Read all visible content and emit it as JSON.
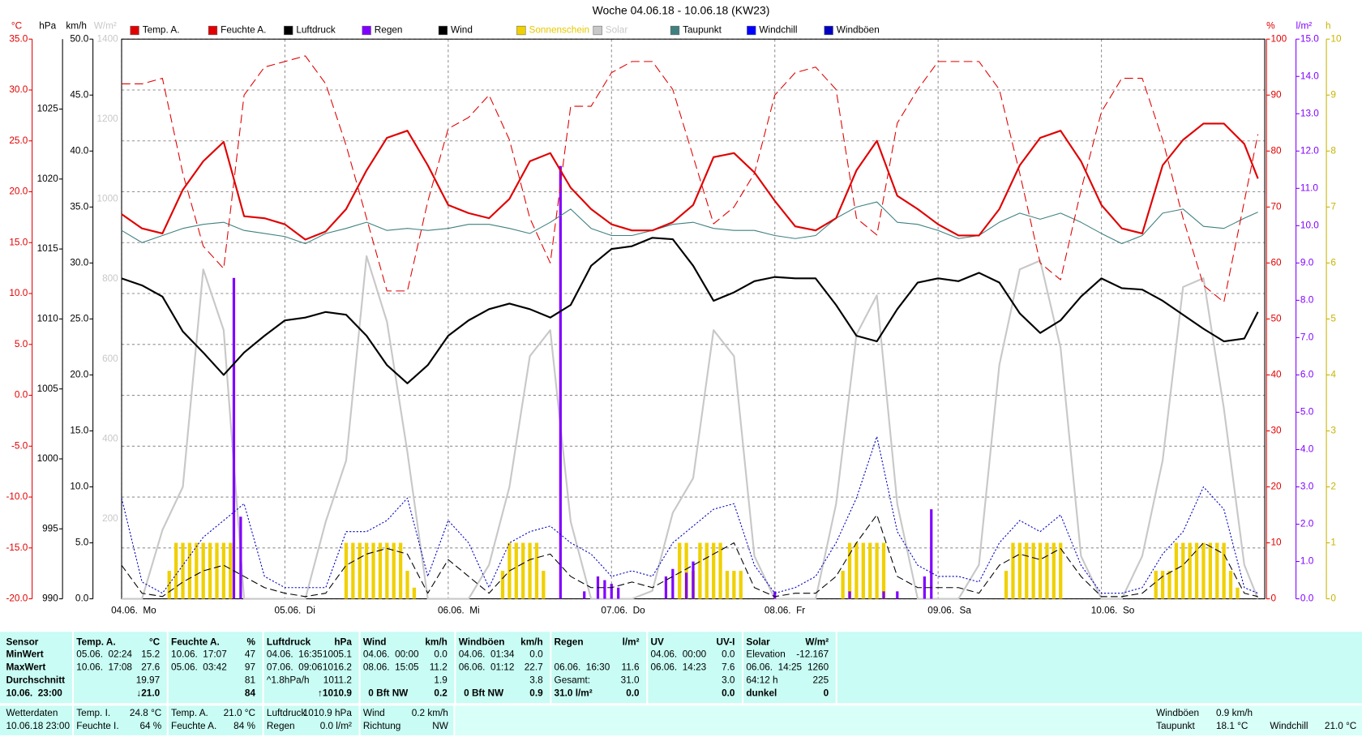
{
  "chart_data": {
    "type": "line",
    "title": "Woche 04.06.18 - 10.06.18 (KW23)",
    "xlim": [
      0,
      168
    ],
    "xticks": [
      {
        "value": 0,
        "label": "04.06.  Mo"
      },
      {
        "value": 24,
        "label": "05.06.  Di"
      },
      {
        "value": 48,
        "label": "06.06.  Mi"
      },
      {
        "value": 72,
        "label": "07.06.  Do"
      },
      {
        "value": 96,
        "label": "08.06.  Fr"
      },
      {
        "value": 120,
        "label": "09.06.  Sa"
      },
      {
        "value": 144,
        "label": "10.06.  So"
      }
    ],
    "grid": true,
    "grid_axis": "°C",
    "axes": [
      {
        "unit": "°C",
        "color": "#e00000",
        "lim": [
          -20,
          35
        ],
        "ticks": [
          {
            "value": -20,
            "label": "-20.0"
          },
          {
            "value": -15,
            "label": "-15.0"
          },
          {
            "value": -10,
            "label": "-10.0"
          },
          {
            "value": -5,
            "label": "-5.0"
          },
          {
            "value": 0,
            "label": "0.0"
          },
          {
            "value": 5,
            "label": "5.0"
          },
          {
            "value": 10,
            "label": "10.0"
          },
          {
            "value": 15,
            "label": "15.0"
          },
          {
            "value": 20,
            "label": "20.0"
          },
          {
            "value": 25,
            "label": "25.0"
          },
          {
            "value": 30,
            "label": "30.0"
          },
          {
            "value": 35,
            "label": "35.0"
          }
        ]
      },
      {
        "unit": "hPa",
        "color": "#000000",
        "lim": [
          990,
          1030
        ],
        "ticks": [
          990,
          995,
          1000,
          1005,
          1010,
          1015,
          1020,
          1025
        ]
      },
      {
        "unit": "km/h",
        "color": "#000000",
        "lim": [
          0,
          50
        ],
        "ticks": [
          {
            "value": 0,
            "label": "0.0"
          },
          {
            "value": 5,
            "label": "5.0"
          },
          {
            "value": 10,
            "label": "10.0"
          },
          {
            "value": 15,
            "label": "15.0"
          },
          {
            "value": 20,
            "label": "20.0"
          },
          {
            "value": 25,
            "label": "25.0"
          },
          {
            "value": 30,
            "label": "30.0"
          },
          {
            "value": 35,
            "label": "35.0"
          },
          {
            "value": 40,
            "label": "40.0"
          },
          {
            "value": 45,
            "label": "45.0"
          },
          {
            "value": 50,
            "label": "50.0"
          }
        ]
      },
      {
        "unit": "W/m²",
        "color": "#c8c8c8",
        "lim": [
          0,
          1400
        ],
        "ticks": [
          200,
          400,
          600,
          800,
          1000,
          1200,
          1400
        ]
      },
      {
        "unit": "%",
        "color": "#e00000",
        "lim": [
          0,
          100
        ],
        "ticks": [
          0,
          10,
          20,
          30,
          40,
          50,
          60,
          70,
          80,
          90,
          100
        ]
      },
      {
        "unit": "l/m²",
        "color": "#8000ff",
        "lim": [
          0,
          15
        ],
        "ticks": [
          {
            "value": 0,
            "label": "0.0"
          },
          {
            "value": 1,
            "label": "1.0"
          },
          {
            "value": 2,
            "label": "2.0"
          },
          {
            "value": 3,
            "label": "3.0"
          },
          {
            "value": 4,
            "label": "4.0"
          },
          {
            "value": 5,
            "label": "5.0"
          },
          {
            "value": 6,
            "label": "6.0"
          },
          {
            "value": 7,
            "label": "7.0"
          },
          {
            "value": 8,
            "label": "8.0"
          },
          {
            "value": 9,
            "label": "9.0"
          },
          {
            "value": 10,
            "label": "10.0"
          },
          {
            "value": 11,
            "label": "11.0"
          },
          {
            "value": 12,
            "label": "12.0"
          },
          {
            "value": 13,
            "label": "13.0"
          },
          {
            "value": 14,
            "label": "14.0"
          },
          {
            "value": 15,
            "label": "15.0"
          }
        ]
      },
      {
        "unit": "h",
        "color": "#c8b400",
        "lim": [
          0,
          10
        ],
        "ticks": [
          0,
          1,
          2,
          3,
          4,
          5,
          6,
          7,
          8,
          9,
          10
        ]
      }
    ],
    "x": [
      0,
      3,
      6,
      9,
      12,
      15,
      18,
      21,
      24,
      27,
      30,
      33,
      36,
      39,
      42,
      45,
      48,
      51,
      54,
      57,
      60,
      63,
      66,
      69,
      72,
      75,
      78,
      81,
      84,
      87,
      90,
      93,
      96,
      99,
      102,
      105,
      108,
      111,
      114,
      117,
      120,
      123,
      126,
      129,
      132,
      135,
      138,
      141,
      144,
      147,
      150,
      153,
      156,
      159,
      162,
      165,
      167
    ],
    "series": [
      {
        "name": "Temp. A.",
        "color": "#e00000",
        "axis": "°C",
        "style": "solid",
        "width": 2,
        "values": [
          17.8,
          16.4,
          15.9,
          20.2,
          23.0,
          24.9,
          17.6,
          17.4,
          16.8,
          15.3,
          16.1,
          18.3,
          22.1,
          25.3,
          26.0,
          22.6,
          18.7,
          17.9,
          17.4,
          19.3,
          23.0,
          23.8,
          20.4,
          18.3,
          16.8,
          16.2,
          16.2,
          17.0,
          18.7,
          23.4,
          23.8,
          21.9,
          19.1,
          16.6,
          16.2,
          17.4,
          22.1,
          25.0,
          19.6,
          18.3,
          16.8,
          15.7,
          15.7,
          18.3,
          22.6,
          25.3,
          26.0,
          23.0,
          18.7,
          16.4,
          15.9,
          22.6,
          25.1,
          26.7,
          26.7,
          24.7,
          21.3
        ]
      },
      {
        "name": "Feuchte A.",
        "color": "#e00000",
        "axis": "%",
        "style": "dashed",
        "width": 1,
        "values": [
          92,
          92,
          93,
          76,
          63,
          59,
          90,
          95,
          96,
          97,
          92,
          81,
          68,
          55,
          55,
          71,
          84,
          86,
          90,
          82,
          68,
          60,
          88,
          88,
          94,
          96,
          96,
          91,
          79,
          67,
          70,
          76,
          90,
          94,
          95,
          91,
          68,
          65,
          85,
          91,
          96,
          96,
          96,
          91,
          76,
          60,
          57,
          73,
          87,
          93,
          93,
          82,
          68,
          56,
          53,
          71,
          83
        ]
      },
      {
        "name": "Luftdruck",
        "color": "#000000",
        "axis": "hPa",
        "style": "solid",
        "width": 2,
        "values": [
          1012.9,
          1012.4,
          1011.6,
          1009.1,
          1007.6,
          1006.0,
          1007.6,
          1008.8,
          1009.9,
          1010.1,
          1010.5,
          1010.3,
          1008.8,
          1006.7,
          1005.4,
          1006.7,
          1008.8,
          1009.9,
          1010.7,
          1011.1,
          1010.7,
          1010.1,
          1011.0,
          1013.8,
          1015.0,
          1015.2,
          1015.8,
          1015.7,
          1013.8,
          1011.3,
          1011.9,
          1012.7,
          1013.0,
          1012.9,
          1012.9,
          1011.0,
          1008.8,
          1008.4,
          1010.7,
          1012.6,
          1012.9,
          1012.7,
          1013.3,
          1012.6,
          1010.4,
          1009.0,
          1009.9,
          1011.6,
          1012.9,
          1012.2,
          1012.1,
          1011.3,
          1010.3,
          1009.3,
          1008.4,
          1008.6,
          1010.5
        ]
      },
      {
        "name": "Regen",
        "color": "#8000ff",
        "axis": "l/m²",
        "type": "bar",
        "width": 3,
        "x": [
          16.5,
          17.5,
          64.5,
          68,
          70,
          71,
          72,
          73,
          80,
          81,
          83,
          84,
          96,
          107,
          112,
          114,
          118,
          119
        ],
        "values": [
          8.6,
          2.2,
          11.6,
          0.2,
          0.6,
          0.5,
          0.4,
          0.3,
          0.6,
          0.8,
          0.7,
          1.0,
          0.2,
          0.2,
          0.2,
          0.2,
          0.6,
          2.4
        ]
      },
      {
        "name": "Wind",
        "color": "#000000",
        "axis": "km/h",
        "style": "longdash",
        "width": 1,
        "values": [
          3.0,
          0.5,
          0.2,
          1.5,
          2.5,
          3.0,
          2.0,
          1.0,
          0.5,
          0.2,
          0.5,
          3.0,
          4.0,
          4.5,
          4.0,
          0.5,
          3.5,
          2.0,
          0.5,
          2.5,
          3.5,
          4.0,
          2.0,
          1.0,
          1.0,
          1.5,
          1.0,
          2.0,
          3.0,
          4.0,
          5.0,
          1.0,
          0.2,
          0.5,
          0.5,
          2.0,
          5.0,
          7.5,
          2.0,
          1.0,
          1.0,
          1.0,
          0.5,
          3.0,
          4.0,
          3.5,
          4.5,
          2.0,
          0.2,
          0.2,
          0.5,
          2.0,
          3.0,
          5.0,
          4.0,
          0.5,
          0.2
        ]
      },
      {
        "name": "Sonnenschein",
        "color": "#f0d000",
        "legend_color": "#e8c800",
        "axis": "h",
        "type": "bar",
        "width": 4,
        "x": [
          7,
          8,
          9,
          10,
          11,
          12,
          13,
          14,
          15,
          16,
          33,
          34,
          35,
          36,
          37,
          38,
          39,
          40,
          41,
          42,
          43,
          56,
          57,
          58,
          59,
          60,
          61,
          62,
          82,
          83,
          84,
          85,
          86,
          87,
          88,
          89,
          90,
          91,
          106,
          107,
          108,
          109,
          110,
          111,
          112,
          130,
          131,
          132,
          133,
          134,
          135,
          136,
          137,
          138,
          152,
          153,
          154,
          155,
          156,
          157,
          158,
          159,
          160,
          161,
          162,
          163,
          164
        ],
        "values": [
          0.5,
          1,
          1,
          1,
          1,
          1,
          1,
          1,
          1,
          1,
          1,
          1,
          1,
          1,
          1,
          1,
          1,
          1,
          1,
          0.5,
          0.2,
          0.5,
          1,
          1,
          1,
          1,
          1,
          0.5,
          1,
          1,
          0.5,
          1,
          1,
          1,
          1,
          0.5,
          0.5,
          0.5,
          0.5,
          1,
          1,
          1,
          1,
          1,
          1,
          0.5,
          1,
          1,
          1,
          1,
          1,
          1,
          1,
          1,
          0.5,
          0.5,
          0.5,
          1,
          1,
          1,
          1,
          1,
          1,
          1,
          1,
          0.5,
          0.2
        ]
      },
      {
        "name": "Solar",
        "color": "#c8c8c8",
        "legend_color": "#c8c8c8",
        "axis": "W/m²",
        "style": "solid",
        "width": 2,
        "values": [
          0,
          0,
          172,
          280,
          824,
          672,
          0,
          0,
          0,
          0,
          193,
          346,
          857,
          693,
          367,
          0,
          0,
          0,
          85,
          280,
          607,
          672,
          193,
          0,
          0,
          0,
          20,
          215,
          302,
          672,
          607,
          107,
          0,
          0,
          0,
          237,
          661,
          759,
          237,
          0,
          0,
          0,
          85,
          585,
          824,
          846,
          628,
          107,
          0,
          0,
          107,
          346,
          780,
          802,
          476,
          85,
          0
        ]
      },
      {
        "name": "Taupunkt",
        "color": "#408080",
        "axis": "°C",
        "style": "solid",
        "width": 1,
        "values": [
          16.2,
          15.0,
          15.7,
          16.4,
          16.8,
          17.0,
          16.2,
          15.9,
          15.6,
          14.9,
          15.9,
          16.4,
          17.0,
          16.2,
          16.4,
          16.2,
          16.4,
          16.8,
          16.8,
          16.4,
          15.9,
          17.0,
          18.3,
          16.4,
          15.7,
          15.7,
          16.2,
          16.8,
          17.0,
          16.4,
          16.2,
          16.2,
          15.7,
          15.4,
          15.7,
          17.4,
          18.5,
          19.0,
          17.0,
          16.8,
          16.2,
          15.4,
          15.7,
          17.0,
          17.9,
          17.3,
          17.9,
          17.0,
          15.9,
          14.9,
          15.7,
          17.9,
          18.3,
          16.6,
          16.4,
          17.4,
          18.0
        ]
      },
      {
        "name": "Windchill",
        "color": "#0000ff",
        "axis": "°C",
        "style": "solid",
        "width": 1,
        "values": [
          17.8,
          16.4,
          15.9,
          20.2,
          23.0,
          24.9,
          17.6,
          17.4,
          16.8,
          15.3,
          16.1,
          18.3,
          22.1,
          25.3,
          26.0,
          22.6,
          18.7,
          17.9,
          17.4,
          19.3,
          23.0,
          23.8,
          20.4,
          18.3,
          16.8,
          16.2,
          16.2,
          17.0,
          18.7,
          23.4,
          23.8,
          21.9,
          19.1,
          16.6,
          16.2,
          17.4,
          22.1,
          25.0,
          19.6,
          18.3,
          16.8,
          15.7,
          15.7,
          18.3,
          22.6,
          25.3,
          26.0,
          23.0,
          18.7,
          16.4,
          15.9,
          22.6,
          25.1,
          26.7,
          26.7,
          24.7,
          21.3
        ]
      },
      {
        "name": "Windböen",
        "color": "#0000c0",
        "axis": "km/h",
        "style": "dotted",
        "width": 1,
        "values": [
          9.0,
          1.5,
          0.5,
          3.0,
          5.5,
          7.0,
          8.5,
          2.0,
          1.0,
          1.0,
          1.0,
          6.0,
          6.0,
          7.0,
          9.0,
          2.0,
          7.0,
          5.0,
          1.0,
          5.0,
          6.0,
          6.5,
          5.0,
          4.0,
          2.0,
          2.5,
          2.0,
          5.0,
          6.5,
          8.0,
          8.5,
          3.0,
          0.5,
          1.0,
          2.0,
          5.0,
          9.0,
          14.5,
          6.0,
          3.0,
          2.0,
          2.0,
          1.5,
          5.0,
          7.0,
          6.0,
          7.5,
          3.0,
          0.5,
          0.5,
          1.0,
          4.0,
          6.0,
          10.0,
          8.0,
          1.0,
          0.5
        ]
      }
    ]
  },
  "stats": {
    "rows": [
      [
        "Sensor",
        "Temp. A.",
        "°C",
        "Feuchte A.",
        "%",
        "Luftdruck",
        "hPa",
        "Wind",
        "km/h",
        "Windböen",
        "km/h",
        "Regen",
        "l/m²",
        "UV",
        "UV-I",
        "Solar",
        "W/m²"
      ],
      [
        "MinWert",
        "05.06.  02:24",
        "15.2",
        "10.06.  17:07",
        "47",
        "04.06.  16:35",
        "1005.1",
        "04.06.  00:00",
        "0.0",
        "04.06.  01:34",
        "0.0",
        null,
        null,
        "04.06.  00:00",
        "0.0",
        "Elevation",
        "-12.167"
      ],
      [
        "MaxWert",
        "10.06.  17:08",
        "27.6",
        "05.06.  03:42",
        "97",
        "07.06.  09:06",
        "1016.2",
        "08.06.  15:05",
        "11.2",
        "06.06.  01:12",
        "22.7",
        "06.06.  16:30",
        "11.6",
        "06.06.  14:23",
        "7.6",
        "06.06.  14:25",
        "1260"
      ],
      [
        "Durchschnitt",
        null,
        "19.97",
        null,
        "81",
        "^1.8hPa/h",
        "1011.2",
        null,
        "1.9",
        null,
        "3.8",
        "Gesamt:",
        "31.0",
        null,
        "3.0",
        "64:12 h",
        "225"
      ],
      [
        "10.06.  23:00",
        null,
        "↓21.0",
        null,
        "84",
        null,
        "↑1010.9",
        "0 Bft NW",
        "0.2",
        "0 Bft NW",
        "0.9",
        "31.0 l/m²",
        "0.0",
        null,
        "0.0",
        "dunkel",
        "0"
      ]
    ]
  },
  "status": {
    "items": [
      {
        "label": "Wetterdaten",
        "value": "10.06.18 23:00"
      },
      {
        "label": "Temp. I.",
        "value": "24.8 °C"
      },
      {
        "label": "Feuchte I.",
        "value": "64 %"
      },
      {
        "label": "Temp. A.",
        "value": "21.0 °C"
      },
      {
        "label": "Feuchte A.",
        "value": "84 %"
      },
      {
        "label": "Luftdruck",
        "value": "1010.9 hPa"
      },
      {
        "label": "Regen",
        "value": "0.0 l/m²"
      },
      {
        "label": "Wind",
        "value": "0.2 km/h"
      },
      {
        "label": "Richtung",
        "value": "NW"
      },
      {
        "label": "Windböen",
        "value": "0.9 km/h"
      },
      {
        "label": "Taupunkt",
        "value": "18.1 °C"
      },
      {
        "label": "Windchill",
        "value": "21.0 °C"
      }
    ]
  }
}
